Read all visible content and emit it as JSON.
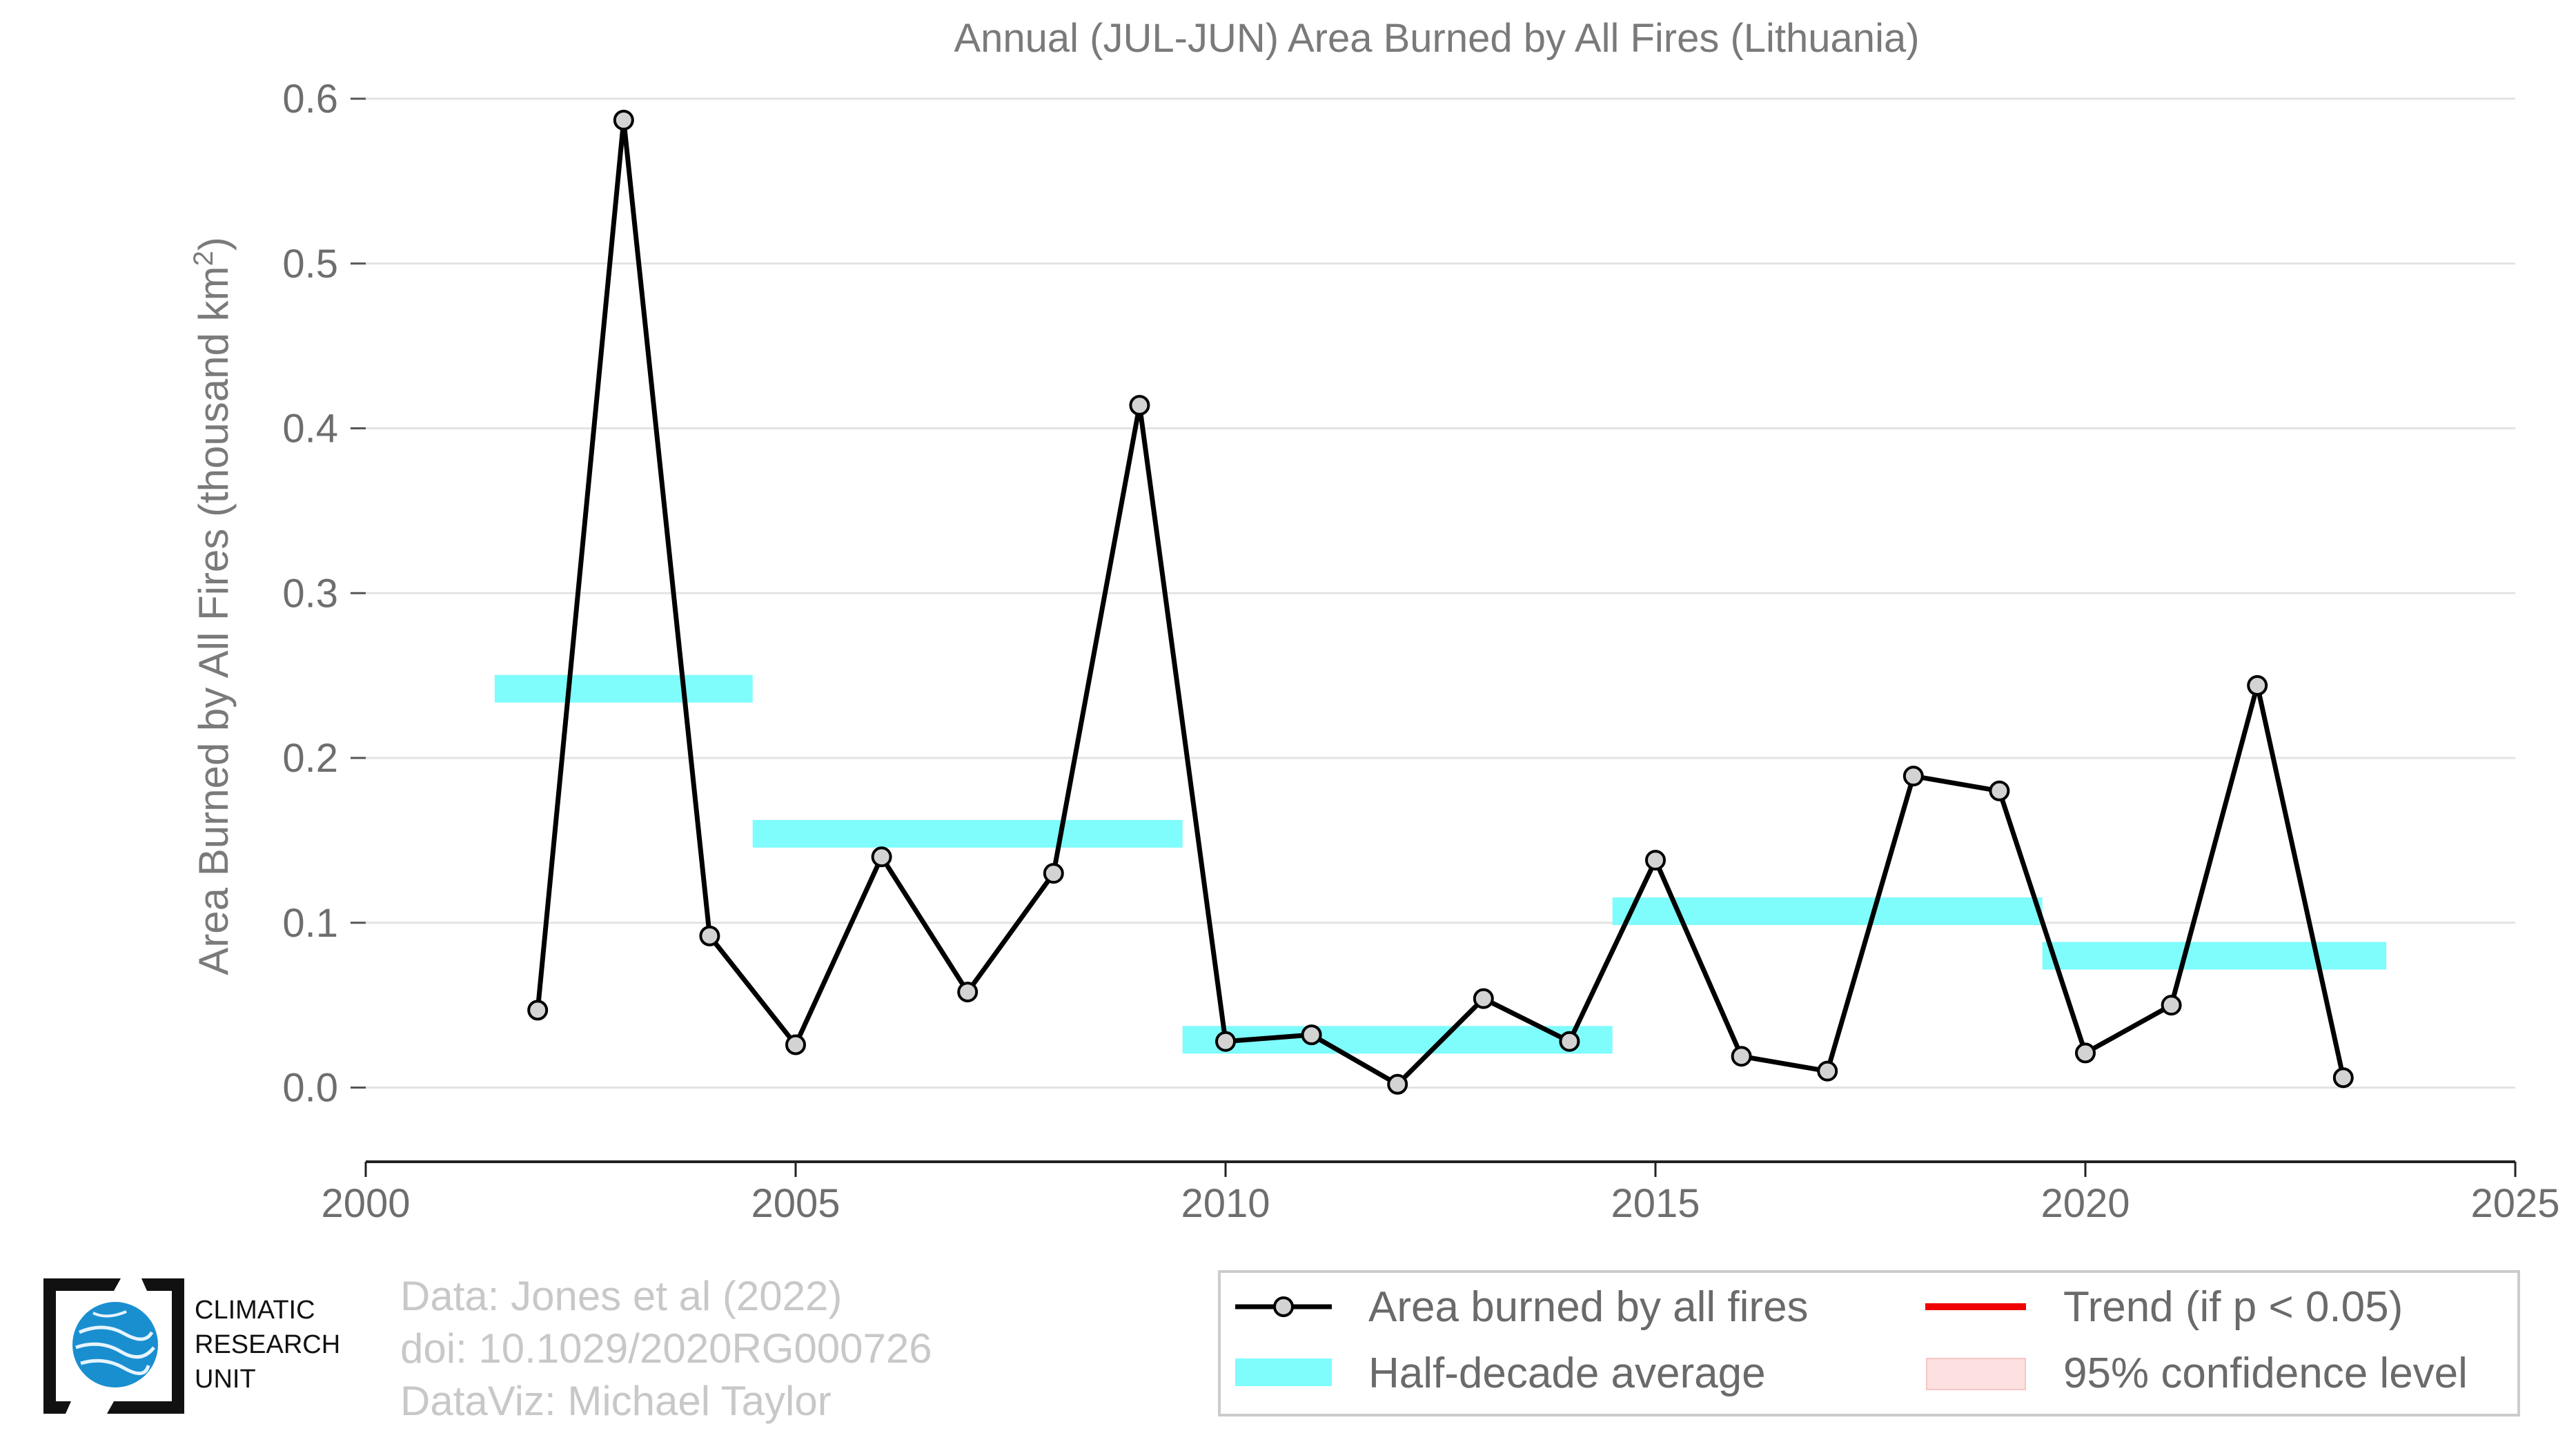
{
  "chart_data": {
    "type": "line",
    "title": "Annual (JUL-JUN) Area Burned by All Fires (Lithuania)",
    "ylabel": "Area Burned by All Fires (thousand km",
    "ylabel_sup": "2",
    "ylabel_end": ")",
    "xlim": [
      2000,
      2025
    ],
    "ylim": [
      -0.045,
      0.6
    ],
    "xticks": [
      2000,
      2005,
      2010,
      2015,
      2020,
      2025
    ],
    "xtick_labels": [
      "2000",
      "2005",
      "2010",
      "2015",
      "2020",
      "2025"
    ],
    "yticks": [
      0.0,
      0.1,
      0.2,
      0.3,
      0.4,
      0.5,
      0.6
    ],
    "ytick_labels": [
      "0.0",
      "0.1",
      "0.2",
      "0.3",
      "0.4",
      "0.5",
      "0.6"
    ],
    "grid": "horizontal",
    "series": [
      {
        "name": "Area burned by all fires",
        "color": "#000000",
        "marker_fill": "#d3d3d3",
        "x": [
          2002,
          2003,
          2004,
          2005,
          2006,
          2007,
          2008,
          2009,
          2010,
          2011,
          2012,
          2013,
          2014,
          2015,
          2016,
          2017,
          2018,
          2019,
          2020,
          2021,
          2022,
          2023
        ],
        "y": [
          0.047,
          0.587,
          0.092,
          0.026,
          0.14,
          0.058,
          0.13,
          0.414,
          0.028,
          0.032,
          0.002,
          0.054,
          0.028,
          0.138,
          0.019,
          0.01,
          0.189,
          0.18,
          0.021,
          0.05,
          0.244,
          0.006
        ]
      }
    ],
    "half_decade_average": {
      "name": "Half-decade average",
      "color": "#7ffcfc",
      "segments": [
        {
          "x_start": 2001.5,
          "x_end": 2004.5,
          "value": 0.242
        },
        {
          "x_start": 2004.5,
          "x_end": 2009.5,
          "value": 0.154
        },
        {
          "x_start": 2009.5,
          "x_end": 2014.5,
          "value": 0.029
        },
        {
          "x_start": 2014.5,
          "x_end": 2019.5,
          "value": 0.107
        },
        {
          "x_start": 2019.5,
          "x_end": 2023.5,
          "value": 0.08
        }
      ]
    },
    "legend": {
      "placement": "bottom-right",
      "entries": [
        {
          "label": "Area burned by all fires",
          "kind": "line-marker",
          "color": "#000000"
        },
        {
          "label": "Trend (if p < 0.05)",
          "kind": "line",
          "color": "#ee0000"
        },
        {
          "label": "Half-decade average",
          "kind": "band",
          "color": "#7ffcfc"
        },
        {
          "label": "95% confidence level",
          "kind": "band",
          "color": "#fde0e0"
        }
      ]
    }
  },
  "credits": {
    "line1": "Data: Jones et al (2022)",
    "line2": "doi: 10.1029/2020RG000726",
    "line3": "DataViz: Michael Taylor"
  },
  "logo": {
    "line1": "CLIMATIC",
    "line2": "RESEARCH",
    "line3": "UNIT",
    "globe_color": "#1a8fd0"
  }
}
